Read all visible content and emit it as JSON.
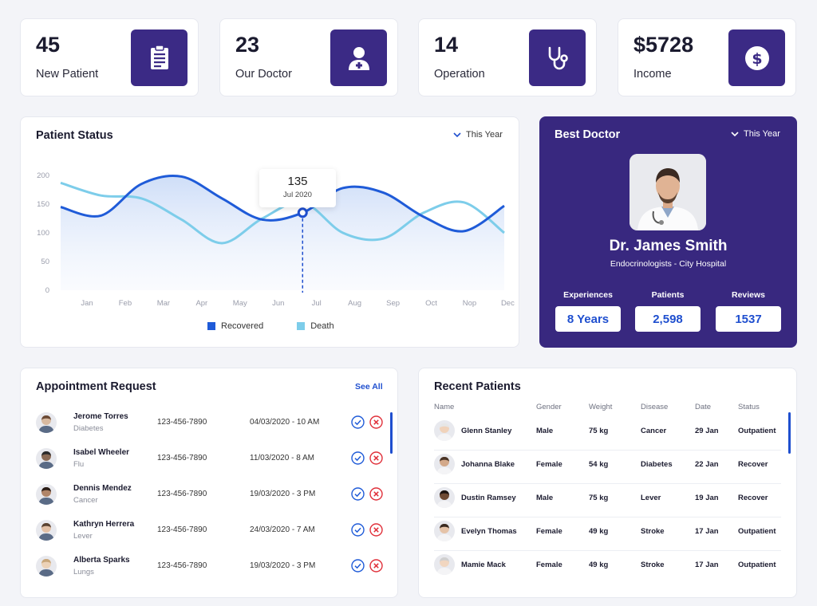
{
  "stats": [
    {
      "value": "45",
      "label": "New Patient",
      "icon": "clipboard-icon"
    },
    {
      "value": "23",
      "label": "Our Doctor",
      "icon": "doctor-icon"
    },
    {
      "value": "14",
      "label": "Operation",
      "icon": "stethoscope-icon"
    },
    {
      "value": "$5728",
      "label": "Income",
      "icon": "dollar-icon"
    }
  ],
  "patient_status": {
    "title": "Patient Status",
    "period": "This Year",
    "tooltip_value": "135",
    "tooltip_date": "Jul 2020"
  },
  "chart_data": {
    "type": "line",
    "categories": [
      "Jan",
      "Feb",
      "Mar",
      "Apr",
      "May",
      "Jun",
      "Jul",
      "Aug",
      "Sep",
      "Oct",
      "Nop",
      "Dec"
    ],
    "yticks": [
      "200",
      "150",
      "100",
      "50",
      "0"
    ],
    "ylim": [
      0,
      200
    ],
    "series": [
      {
        "name": "Recovered",
        "color": "#1f5bd8",
        "values": [
          145,
          130,
          185,
          198,
          160,
          123,
          135,
          178,
          170,
          128,
          103,
          147
        ]
      },
      {
        "name": "Death",
        "color": "#7dcdea",
        "values": [
          187,
          165,
          160,
          123,
          82,
          125,
          153,
          100,
          90,
          135,
          153,
          100
        ]
      }
    ]
  },
  "best_doctor": {
    "title": "Best Doctor",
    "period": "This Year",
    "name": "Dr. James Smith",
    "specialty": "Endocrinologists - City Hospital",
    "experiences_label": "Experiences",
    "experiences_value": "8 Years",
    "patients_label": "Patients",
    "patients_value": "2,598",
    "reviews_label": "Reviews",
    "reviews_value": "1537"
  },
  "appointments": {
    "title": "Appointment Request",
    "see_all": "See All",
    "rows": [
      {
        "name": "Jerome Torres",
        "disease": "Diabetes",
        "phone": "123-456-7890",
        "date": "04/03/2020 - 10 AM"
      },
      {
        "name": "Isabel Wheeler",
        "disease": "Flu",
        "phone": "123-456-7890",
        "date": "11/03/2020 - 8 AM"
      },
      {
        "name": "Dennis Mendez",
        "disease": "Cancer",
        "phone": "123-456-7890",
        "date": "19/03/2020 - 3 PM"
      },
      {
        "name": "Kathryn Herrera",
        "disease": "Lever",
        "phone": "123-456-7890",
        "date": "24/03/2020 - 7 AM"
      },
      {
        "name": "Alberta Sparks",
        "disease": "Lungs",
        "phone": "123-456-7890",
        "date": "19/03/2020 - 3 PM"
      }
    ]
  },
  "recent_patients": {
    "title": "Recent Patients",
    "headers": {
      "name": "Name",
      "gender": "Gender",
      "weight": "Weight",
      "disease": "Disease",
      "date": "Date",
      "status": "Status"
    },
    "rows": [
      {
        "name": "Glenn Stanley",
        "gender": "Male",
        "weight": "75 kg",
        "disease": "Cancer",
        "date": "29 Jan",
        "status": "Outpatient"
      },
      {
        "name": "Johanna Blake",
        "gender": "Female",
        "weight": "54 kg",
        "disease": "Diabetes",
        "date": "22 Jan",
        "status": "Recover"
      },
      {
        "name": "Dustin Ramsey",
        "gender": "Male",
        "weight": "75 kg",
        "disease": "Lever",
        "date": "19 Jan",
        "status": "Recover"
      },
      {
        "name": "Evelyn Thomas",
        "gender": "Female",
        "weight": "49 kg",
        "disease": "Stroke",
        "date": "17 Jan",
        "status": "Outpatient"
      },
      {
        "name": "Mamie Mack",
        "gender": "Female",
        "weight": "49 kg",
        "disease": "Stroke",
        "date": "17 Jan",
        "status": "Outpatient"
      }
    ]
  }
}
